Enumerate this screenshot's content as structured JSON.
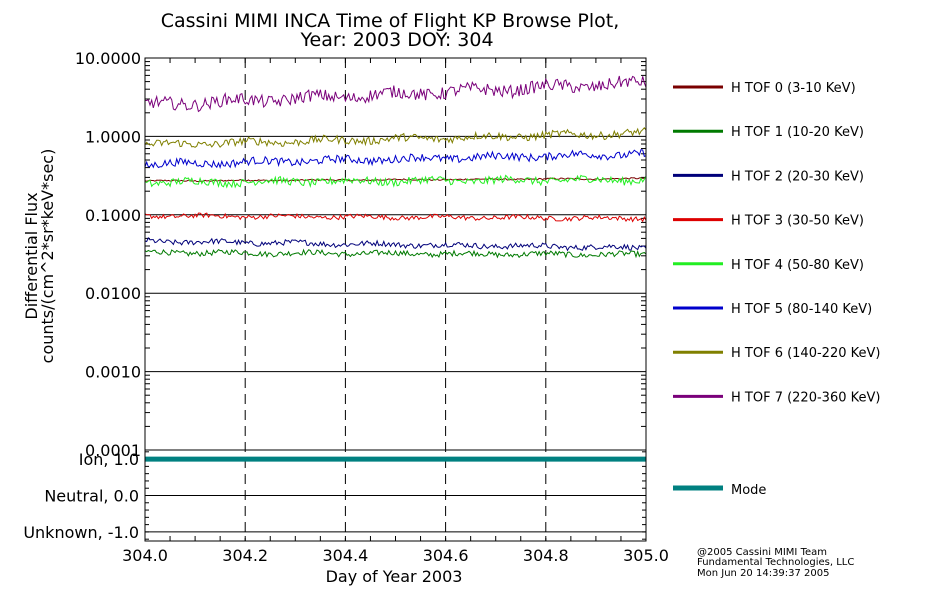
{
  "title_line1": "Cassini MIMI INCA Time of Flight KP Browse Plot,",
  "title_line2": "Year: 2003 DOY: 304",
  "credits": [
    "@2005 Cassini MIMI Team",
    "Fundamental Technologies, LLC",
    "Mon Jun 20 14:39:37 2005"
  ],
  "chart_data": [
    {
      "type": "line",
      "title": "Cassini MIMI INCA Time of Flight KP Browse Plot, Year: 2003 DOY: 304",
      "xlabel": "Day of Year 2003",
      "ylabel_line1": "Differential Flux",
      "ylabel_line2": "counts/(cm^2*sr*keV*sec)",
      "yscale": "log",
      "xlim": [
        304.0,
        305.0
      ],
      "ylim": [
        0.0001,
        10.0
      ],
      "x_ticks": [
        304.0,
        304.2,
        304.4,
        304.6,
        304.8,
        305.0
      ],
      "x_tick_labels": [
        "304.0",
        "304.2",
        "304.4",
        "304.6",
        "304.8",
        "305.0"
      ],
      "y_ticks": [
        10.0,
        1.0,
        0.1,
        0.01,
        0.001,
        0.0001
      ],
      "y_tick_labels": [
        "10.0000",
        "1.0000",
        "0.1000",
        "0.0100",
        "0.0010",
        "0.0001"
      ],
      "vertical_dashed_lines_at": [
        304.2,
        304.4,
        304.6,
        304.8
      ],
      "legend_position": "right",
      "series": [
        {
          "name": "H TOF 0 (3-10 KeV)",
          "color": "#7a0000",
          "start": 0.27,
          "end": 0.29,
          "noise": 0.01
        },
        {
          "name": "H TOF 1 (10-20 KeV)",
          "color": "#007a00",
          "start": 0.033,
          "end": 0.031,
          "noise": 0.035
        },
        {
          "name": "H TOF 2 (20-30 KeV)",
          "color": "#00007a",
          "start": 0.046,
          "end": 0.038,
          "noise": 0.035
        },
        {
          "name": "H TOF 3 (30-50 KeV)",
          "color": "#dd0000",
          "start": 0.097,
          "end": 0.09,
          "noise": 0.03
        },
        {
          "name": "H TOF 4 (50-80 KeV)",
          "color": "#22ee22",
          "start": 0.26,
          "end": 0.28,
          "noise": 0.05
        },
        {
          "name": "H TOF 5 (80-140 KeV)",
          "color": "#0000cc",
          "start": 0.44,
          "end": 0.6,
          "noise": 0.05
        },
        {
          "name": "H TOF 6 (140-220 KeV)",
          "color": "#808000",
          "start": 0.78,
          "end": 1.1,
          "noise": 0.05
        },
        {
          "name": "H TOF 7 (220-360 KeV)",
          "color": "#7a007a",
          "start": 2.5,
          "end": 4.8,
          "noise": 0.08
        }
      ]
    },
    {
      "type": "line",
      "xlabel": "Day of Year 2003",
      "xlim": [
        304.0,
        305.0
      ],
      "ylim": [
        -1.25,
        1.25
      ],
      "y_ticks": [
        1.0,
        0.0,
        -1.0
      ],
      "y_tick_labels": [
        "Ion, 1.0",
        "Neutral, 0.0",
        "Unknown, -1.0"
      ],
      "series": [
        {
          "name": "Mode",
          "color": "#008080",
          "x": [
            304.0,
            305.0
          ],
          "values": [
            1.0,
            1.0
          ]
        }
      ]
    }
  ]
}
